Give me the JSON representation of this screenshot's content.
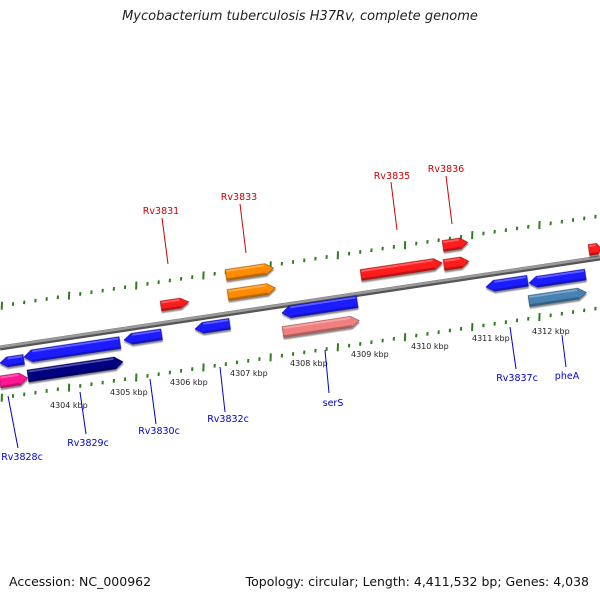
{
  "title": "Mycobacterium tuberculosis H37Rv, complete genome",
  "footer": {
    "accession": "Accession: NC_000962",
    "stats": "Topology: circular; Length: 4,411,532 bp; Genes: 4,038"
  },
  "colors": {
    "backbone": "#808080",
    "tick": "#2e7d1e",
    "forward_label": "#d00000",
    "reverse_label": "#0000cc"
  },
  "scale_labels": [
    "4304 kbp",
    "4305 kbp",
    "4306 kbp",
    "4307 kbp",
    "4308 kbp",
    "4309 kbp",
    "4310 kbp",
    "4311 kbp",
    "4312 kbp"
  ],
  "genes": [
    {
      "name": "Rv3831",
      "color": "#ff1a1a"
    },
    {
      "name": "Rv3833",
      "color": "#ff8c00"
    },
    {
      "name": "Rv3835",
      "color": "#ff1a1a"
    },
    {
      "name": "Rv3836",
      "color": "#ff1a1a"
    },
    {
      "name": "Rv3828c",
      "color": "#ff1493"
    },
    {
      "name": "Rv3829c",
      "color": "#000080"
    },
    {
      "name": "Rv3830c",
      "color": "#1a1aff"
    },
    {
      "name": "Rv3832c",
      "color": "#1a1aff"
    },
    {
      "name": "serS",
      "color": "#f08080"
    },
    {
      "name": "Rv3837c",
      "color": "#1a1aff"
    },
    {
      "name": "pheA",
      "color": "#4682b4"
    }
  ]
}
